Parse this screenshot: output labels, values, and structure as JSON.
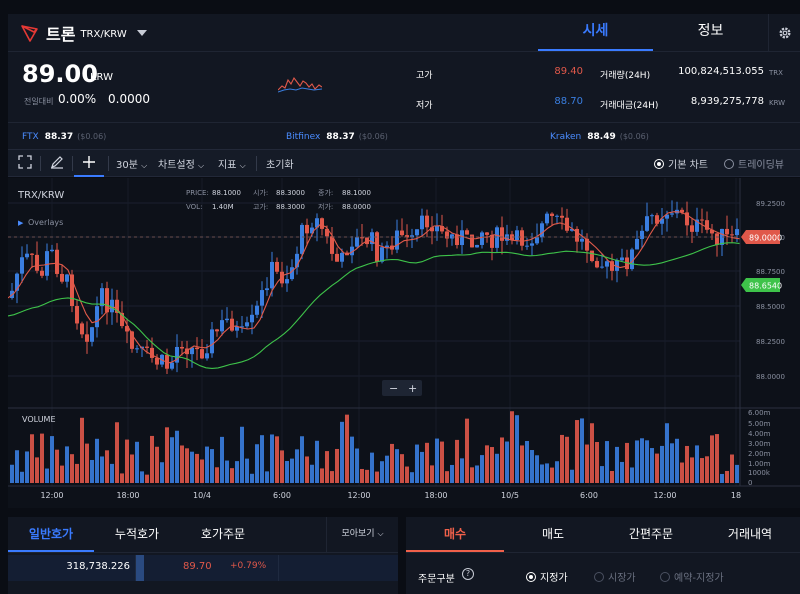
{
  "coin": {
    "name": "트론",
    "pair": "TRX/KRW"
  },
  "tabs": {
    "sise": "시세",
    "info": "정보"
  },
  "price": {
    "value": "89.00",
    "unit": "KRW",
    "change_label": "전일대비",
    "change_pct": "0.00%",
    "change_amt": "0.0000"
  },
  "stats": {
    "high_label": "고가",
    "high": "89.40",
    "low_label": "저가",
    "low": "88.70",
    "vol_label": "거래량(24H)",
    "vol": "100,824,513.055",
    "vol_unit": "TRX",
    "amt_label": "거래대금(24H)",
    "amt": "8,939,275,778",
    "amt_unit": "KRW"
  },
  "exchanges": [
    {
      "name": "FTX",
      "price": "88.37",
      "change": "($0.06)"
    },
    {
      "name": "Bitfinex",
      "price": "88.37",
      "change": "($0.06)"
    },
    {
      "name": "Kraken",
      "price": "88.49",
      "change": "($0.06)"
    }
  ],
  "toolbar": {
    "interval": "30분",
    "chart_settings": "차트설정",
    "indicators": "지표",
    "reset": "초기화",
    "basic_chart": "기본 차트",
    "tradingview": "트레이딩뷰"
  },
  "chart": {
    "symbol": "TRX/KRW",
    "overlays": "Overlays",
    "price_label": "PRICE:",
    "price_val": "88.1000",
    "vol_label": "VOL:",
    "vol_val": "1.40M",
    "open_label": "시가:",
    "open_val": "88.3000",
    "high_label": "고가:",
    "high_val": "88.3000",
    "close_label": "종가:",
    "close_val": "88.1000",
    "low_label": "저가:",
    "low_val": "88.0000",
    "volume_title": "VOLUME",
    "last_price_tag": "89.0000",
    "ma_tag": "88.6540",
    "y_ticks": [
      "89.2500",
      "89.0000",
      "88.7500",
      "88.5000",
      "88.2500",
      "88.0000"
    ],
    "vol_ticks": [
      "6.00m",
      "5.00m",
      "4.00m",
      "3.00m",
      "2.00m",
      "1.00m",
      "1000k",
      "0"
    ],
    "x_ticks": [
      "12:00",
      "18:00",
      "10/4",
      "6:00",
      "12:00",
      "18:00",
      "10/5",
      "6:00",
      "12:00",
      "18"
    ],
    "colors": {
      "up": "#3a7ee0",
      "down": "#e0584a",
      "ma_fast": "#e05a4a",
      "ma_slow": "#3ec34a"
    }
  },
  "orderbook": {
    "tabs": [
      "일반호가",
      "누적호가",
      "호가주문"
    ],
    "view_more": "모아보기",
    "row": {
      "qty": "318,738.226",
      "price": "89.70",
      "pct": "+0.79%"
    }
  },
  "order": {
    "tabs": [
      "매수",
      "매도",
      "간편주문",
      "거래내역"
    ],
    "type_label": "주문구분",
    "types": [
      "지정가",
      "시장가",
      "예약-지정가"
    ]
  }
}
